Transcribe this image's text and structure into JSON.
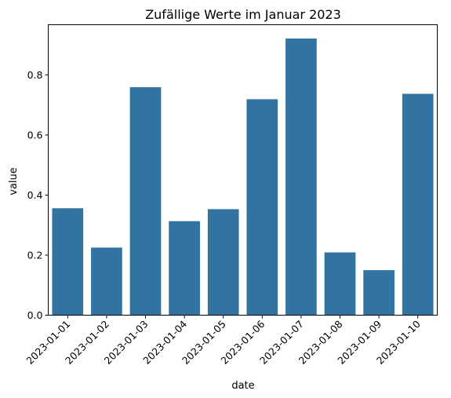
{
  "chart_data": {
    "type": "bar",
    "title": "Zufällige Werte im Januar 2023",
    "xlabel": "date",
    "ylabel": "value",
    "categories": [
      "2023-01-01",
      "2023-01-02",
      "2023-01-03",
      "2023-01-04",
      "2023-01-05",
      "2023-01-06",
      "2023-01-07",
      "2023-01-08",
      "2023-01-09",
      "2023-01-10"
    ],
    "values": [
      0.356,
      0.225,
      0.759,
      0.313,
      0.353,
      0.719,
      0.921,
      0.209,
      0.15,
      0.737
    ],
    "ylim": [
      0,
      0.967
    ],
    "yticks": [
      0.0,
      0.2,
      0.4,
      0.6,
      0.8
    ],
    "ytick_labels": [
      "0.0",
      "0.2",
      "0.4",
      "0.6",
      "0.8"
    ],
    "grid": false,
    "legend": "none",
    "bar_color": "#3274a1"
  }
}
